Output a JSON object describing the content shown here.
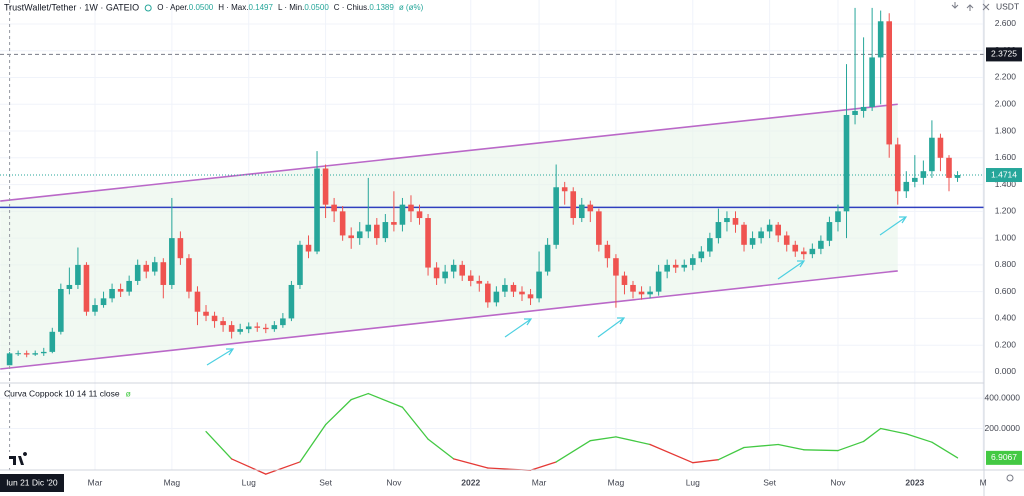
{
  "chart_data": {
    "type": "candlestick",
    "title": "TrustWallet/Tether · 1W · GATEIO",
    "header": {
      "fields": [
        {
          "key": "O · Aper.",
          "value": "0.0500"
        },
        {
          "key": "H · Max.",
          "value": "0.1497"
        },
        {
          "key": "L · Min.",
          "value": "0.0500"
        },
        {
          "key": "C · Chius.",
          "value": "0.1389"
        }
      ],
      "change": "ø (ø%)"
    },
    "currency": "USDT",
    "up_color": "#26a69a",
    "down_color": "#ef5350",
    "candles": {
      "open": [
        0.05,
        0.1389,
        0.14,
        0.13,
        0.14,
        0.15,
        0.3,
        0.62,
        0.65,
        0.8,
        0.45,
        0.5,
        0.55,
        0.62,
        0.6,
        0.68,
        0.8,
        0.75,
        0.82,
        0.65,
        1.0,
        0.85,
        0.6,
        0.45,
        0.42,
        0.38,
        0.35,
        0.3,
        0.32,
        0.34,
        0.33,
        0.32,
        0.35,
        0.4,
        0.65,
        0.95,
        0.9,
        1.52,
        1.25,
        1.2,
        1.02,
        1.0,
        1.05,
        1.1,
        1.0,
        1.12,
        1.1,
        1.25,
        1.2,
        1.15,
        0.78,
        0.7,
        0.75,
        0.8,
        0.72,
        0.68,
        0.66,
        0.52,
        0.6,
        0.65,
        0.6,
        0.58,
        0.55,
        0.75,
        0.95,
        1.38,
        1.35,
        1.15,
        1.25,
        1.2,
        0.95,
        0.85,
        0.72,
        0.65,
        0.6,
        0.58,
        0.6,
        0.75,
        0.8,
        0.78,
        0.8,
        0.85,
        0.9,
        1.0,
        1.12,
        1.15,
        1.1,
        0.95,
        1.0,
        1.05,
        1.1,
        1.02,
        0.95,
        0.9,
        0.88,
        0.92,
        0.98,
        1.12,
        1.2,
        1.92,
        1.95,
        1.98,
        2.35,
        2.62,
        1.7,
        1.35,
        1.42,
        1.45,
        1.5,
        1.75,
        1.6,
        1.45
      ],
      "high": [
        0.1497,
        0.16,
        0.16,
        0.16,
        0.18,
        0.33,
        0.66,
        0.78,
        0.93,
        0.82,
        0.55,
        0.6,
        0.66,
        0.66,
        0.72,
        0.84,
        0.83,
        0.86,
        0.85,
        1.3,
        1.05,
        0.88,
        0.64,
        0.5,
        0.45,
        0.41,
        0.38,
        0.36,
        0.37,
        0.37,
        0.36,
        0.38,
        0.44,
        0.68,
        0.98,
        1.02,
        1.65,
        1.55,
        1.3,
        1.24,
        1.08,
        1.12,
        1.45,
        1.15,
        1.18,
        1.35,
        1.3,
        1.32,
        1.25,
        1.18,
        0.82,
        0.8,
        0.84,
        0.83,
        0.76,
        0.72,
        0.68,
        0.64,
        0.7,
        0.67,
        0.64,
        0.62,
        0.9,
        1.0,
        1.55,
        1.42,
        1.38,
        1.3,
        1.28,
        1.22,
        0.98,
        0.88,
        0.75,
        0.68,
        0.64,
        0.64,
        0.8,
        0.84,
        0.84,
        0.84,
        0.88,
        0.94,
        1.04,
        1.22,
        1.2,
        1.2,
        1.12,
        1.05,
        1.08,
        1.14,
        1.12,
        1.05,
        0.98,
        0.93,
        0.96,
        1.02,
        1.16,
        1.25,
        2.3,
        2.72,
        2.5,
        2.72,
        2.7,
        2.68,
        1.75,
        1.5,
        1.62,
        1.58,
        1.88,
        1.78,
        1.62,
        1.5
      ],
      "low": [
        0.05,
        0.12,
        0.11,
        0.12,
        0.12,
        0.14,
        0.28,
        0.58,
        0.62,
        0.42,
        0.42,
        0.48,
        0.52,
        0.56,
        0.57,
        0.65,
        0.7,
        0.72,
        0.55,
        0.62,
        0.8,
        0.55,
        0.35,
        0.38,
        0.33,
        0.3,
        0.25,
        0.28,
        0.29,
        0.3,
        0.29,
        0.3,
        0.33,
        0.38,
        0.62,
        0.85,
        0.88,
        1.15,
        1.12,
        0.98,
        0.92,
        0.95,
        1.0,
        0.95,
        0.97,
        1.05,
        1.05,
        1.12,
        1.1,
        0.72,
        0.65,
        0.66,
        0.7,
        0.68,
        0.64,
        0.6,
        0.48,
        0.49,
        0.56,
        0.56,
        0.53,
        0.5,
        0.52,
        0.72,
        0.92,
        1.25,
        1.1,
        1.12,
        1.12,
        0.9,
        0.78,
        0.48,
        0.58,
        0.55,
        0.54,
        0.55,
        0.57,
        0.7,
        0.74,
        0.75,
        0.76,
        0.82,
        0.86,
        0.96,
        1.05,
        1.04,
        0.9,
        0.92,
        0.96,
        1.0,
        0.97,
        0.9,
        0.86,
        0.84,
        0.85,
        0.88,
        0.94,
        1.05,
        1.0,
        1.85,
        1.9,
        1.95,
        2.0,
        1.6,
        1.25,
        1.3,
        1.38,
        1.4,
        1.45,
        1.5,
        1.35,
        1.42
      ],
      "close": [
        0.1389,
        0.14,
        0.13,
        0.14,
        0.15,
        0.3,
        0.62,
        0.65,
        0.8,
        0.45,
        0.5,
        0.55,
        0.62,
        0.6,
        0.68,
        0.8,
        0.75,
        0.82,
        0.65,
        1.0,
        0.85,
        0.6,
        0.45,
        0.42,
        0.38,
        0.35,
        0.3,
        0.32,
        0.34,
        0.33,
        0.32,
        0.35,
        0.4,
        0.65,
        0.95,
        0.9,
        1.52,
        1.25,
        1.2,
        1.02,
        1.0,
        1.05,
        1.1,
        1.0,
        1.12,
        1.1,
        1.25,
        1.2,
        1.15,
        0.78,
        0.7,
        0.75,
        0.8,
        0.72,
        0.68,
        0.66,
        0.52,
        0.6,
        0.65,
        0.6,
        0.58,
        0.55,
        0.75,
        0.95,
        1.38,
        1.35,
        1.15,
        1.25,
        1.2,
        0.95,
        0.85,
        0.72,
        0.65,
        0.6,
        0.58,
        0.6,
        0.75,
        0.8,
        0.78,
        0.8,
        0.85,
        0.9,
        1.0,
        1.12,
        1.15,
        1.1,
        0.95,
        1.0,
        1.05,
        1.1,
        1.02,
        0.95,
        0.9,
        0.88,
        0.92,
        0.98,
        1.12,
        1.2,
        1.92,
        1.95,
        1.98,
        2.35,
        2.62,
        1.7,
        1.35,
        1.42,
        1.45,
        1.5,
        1.75,
        1.6,
        1.45,
        1.4714
      ]
    },
    "xlim": [
      -1.124,
      114.1
    ],
    "xticks": [
      {
        "value": 10,
        "label": "Mar"
      },
      {
        "value": 19,
        "label": "Mag"
      },
      {
        "value": 28,
        "label": "Lug"
      },
      {
        "value": 37,
        "label": "Set"
      },
      {
        "value": 45,
        "label": "Nov"
      },
      {
        "value": 54,
        "label": "2022"
      },
      {
        "value": 62,
        "label": "Mar"
      },
      {
        "value": 71,
        "label": "Mag"
      },
      {
        "value": 80,
        "label": "Lug"
      },
      {
        "value": 89,
        "label": "Set"
      },
      {
        "value": 97,
        "label": "Nov"
      },
      {
        "value": 106,
        "label": "2023"
      },
      {
        "value": 114,
        "label": "M"
      }
    ],
    "crosshair": {
      "x": 0,
      "label": "lun 21 Dic '20"
    },
    "ylim": [
      -0.075,
      2.779
    ],
    "yticks": [
      {
        "value": 0,
        "label": "0.000"
      },
      {
        "value": 0.2,
        "label": "0.200"
      },
      {
        "value": 0.4,
        "label": "0.400"
      },
      {
        "value": 0.6,
        "label": "0.600"
      },
      {
        "value": 0.8,
        "label": "0.800"
      },
      {
        "value": 1,
        "label": "1.000"
      },
      {
        "value": 1.2,
        "label": "1.200"
      },
      {
        "value": 1.4,
        "label": "1.400"
      },
      {
        "value": 1.6,
        "label": "1.600"
      },
      {
        "value": 1.8,
        "label": "1.800"
      },
      {
        "value": 2,
        "label": "2.000"
      },
      {
        "value": 2.2,
        "label": "2.200"
      },
      {
        "value": 2.4,
        "label": "2.400"
      },
      {
        "value": 2.6,
        "label": "2.600"
      }
    ],
    "hlines": [
      {
        "value": 2.3725,
        "color": "#787b86",
        "dashed": true
      },
      {
        "value": 1.23,
        "color": "#2f3fbf",
        "dashed": false
      }
    ],
    "channel": {
      "color": "#ba68c8",
      "fill": "#e8f5e9",
      "upper": {
        "x": [
          -1.1,
          104
        ],
        "y": [
          1.277,
          2.0
        ]
      },
      "lower": {
        "x": [
          -1.1,
          104
        ],
        "y": [
          0.022,
          0.755
        ]
      }
    },
    "indicator": {
      "name": "Curva Coppock 10 14 11 close",
      "value_text": "ø",
      "x": [
        23,
        26,
        30,
        34,
        37,
        40,
        42,
        46,
        49,
        52,
        56,
        61,
        64,
        68,
        71,
        75,
        80,
        83,
        86,
        90,
        93,
        97,
        100,
        102,
        105,
        108,
        111
      ],
      "values": [
        180,
        0,
        -100,
        -20,
        225,
        390,
        430,
        340,
        130,
        0,
        -60,
        -75,
        -20,
        120,
        145,
        95,
        -25,
        -5,
        75,
        95,
        60,
        55,
        115,
        200,
        165,
        110,
        6.9067
      ],
      "segment_colors": [
        "#43c943",
        "#e53935",
        "#e53935",
        "#43c943",
        "#43c943",
        "#43c943",
        "#43c943",
        "#43c943",
        "#43c943",
        "#e53935",
        "#e53935",
        "#e53935",
        "#43c943",
        "#43c943",
        "#43c943",
        "#e53935",
        "#e53935",
        "#43c943",
        "#43c943",
        "#43c943",
        "#43c943",
        "#43c943",
        "#43c943",
        "#43c943",
        "#43c943",
        "#43c943"
      ],
      "ylim": [
        -73,
        493
      ],
      "yticks": [
        {
          "value": 200,
          "label": "200.0000"
        },
        {
          "value": 400,
          "label": "400.0000"
        }
      ]
    }
  }
}
